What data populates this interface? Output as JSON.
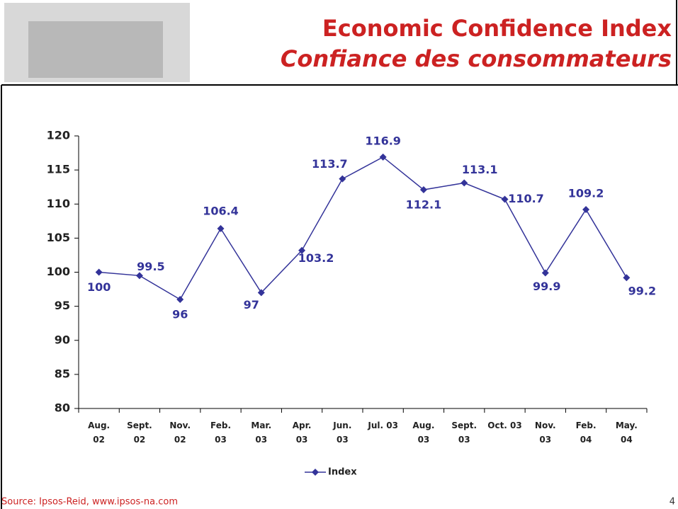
{
  "header": {
    "title": "Economic Confidence Index",
    "subtitle": "Confiance des consommateurs"
  },
  "chart_data": {
    "type": "line",
    "categories": [
      "Aug.\n02",
      "Sept.\n02",
      "Nov.\n02",
      "Feb.\n03",
      "Mar.\n03",
      "Apr.\n03",
      "Jun.\n03",
      "Jul. 03",
      "Aug.\n03",
      "Sept.\n03",
      "Oct. 03",
      "Nov.\n03",
      "Feb.\n04",
      "May.\n04"
    ],
    "series": [
      {
        "name": "Index",
        "color": "#333399",
        "values": [
          100,
          99.5,
          96,
          106.4,
          97,
          103.2,
          113.7,
          116.9,
          112.1,
          113.1,
          110.7,
          99.9,
          109.2,
          99.2
        ]
      }
    ],
    "ylim": [
      80,
      120
    ],
    "yticks": [
      80,
      85,
      90,
      95,
      100,
      105,
      110,
      115,
      120
    ],
    "legend": "bottom"
  },
  "footer": {
    "source": "Source: Ipsos-Reid, www.ipsos-na.com",
    "page": "4"
  }
}
